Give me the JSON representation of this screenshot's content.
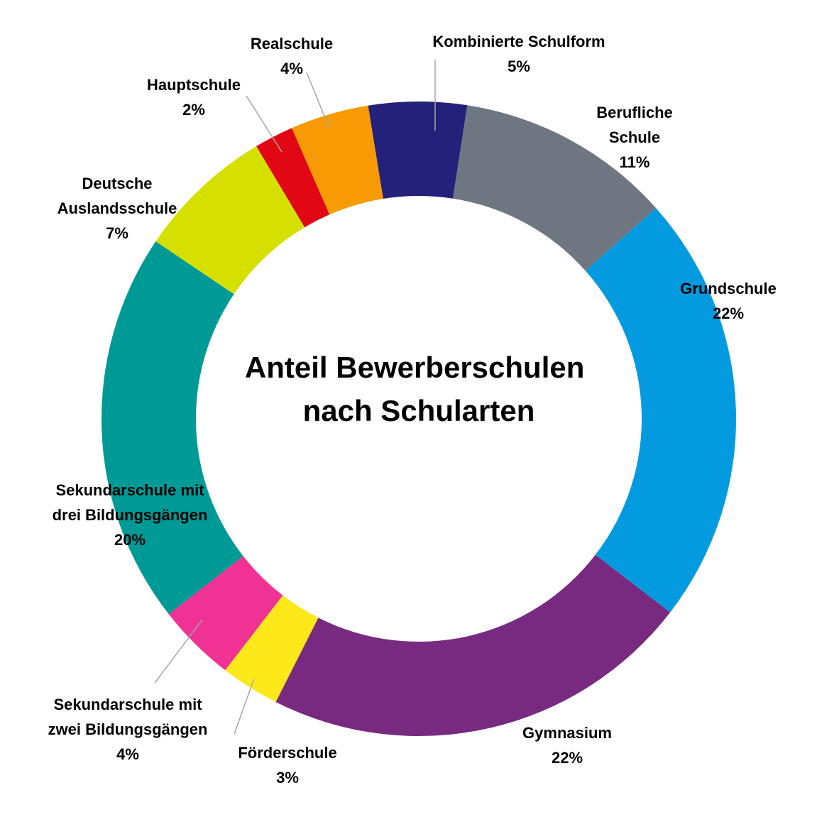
{
  "chart_data": {
    "type": "pie",
    "variant": "donut",
    "title": [
      "Anteil Bewerberschulen",
      "nach Schularten"
    ],
    "slices": [
      {
        "label": [
          "Kombinierte Schulform"
        ],
        "pct_label": "5%",
        "value": 5,
        "color": "#23217a"
      },
      {
        "label": [
          "Berufliche",
          "Schule"
        ],
        "pct_label": "11%",
        "value": 11,
        "color": "#6e7781"
      },
      {
        "label": [
          "Grundschule"
        ],
        "pct_label": "22%",
        "value": 22,
        "color": "#039ae0"
      },
      {
        "label": [
          "Gymnasium"
        ],
        "pct_label": "22%",
        "value": 22,
        "color": "#782a80"
      },
      {
        "label": [
          "Förderschule"
        ],
        "pct_label": "3%",
        "value": 3,
        "color": "#fde919"
      },
      {
        "label": [
          "Sekundarschule mit",
          "zwei Bildungsgängen"
        ],
        "pct_label": "4%",
        "value": 4,
        "color": "#ef3293"
      },
      {
        "label": [
          "Sekundarschule mit",
          "drei Bildungsgängen"
        ],
        "pct_label": "20%",
        "value": 20,
        "color": "#009a96"
      },
      {
        "label": [
          "Deutsche",
          "Auslandsschule"
        ],
        "pct_label": "7%",
        "value": 7,
        "color": "#d6e000"
      },
      {
        "label": [
          "Hauptschule"
        ],
        "pct_label": "2%",
        "value": 2,
        "color": "#e10714"
      },
      {
        "label": [
          "Realschule"
        ],
        "pct_label": "4%",
        "value": 4,
        "color": "#f79a04"
      }
    ]
  }
}
